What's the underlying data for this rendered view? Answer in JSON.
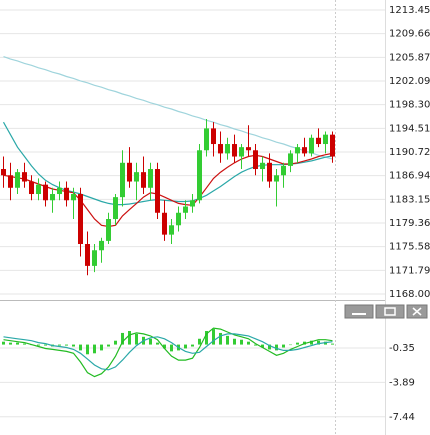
{
  "chart_data": [
    {
      "type": "candlestick",
      "up_color": "#33cc33",
      "down_color": "#cc0000",
      "open": [
        1188,
        1187,
        1185,
        1187.5,
        1186,
        1184,
        1185.5,
        1183,
        1184,
        1185,
        1183,
        1184,
        1176,
        1172.5,
        1175,
        1176.5,
        1180,
        1183.5,
        1189,
        1186,
        1187.5,
        1185,
        1188,
        1181,
        1177.5,
        1179,
        1181,
        1182,
        1183,
        1191,
        1194.5,
        1192,
        1190.5,
        1192,
        1190,
        1191.5,
        1191,
        1188,
        1189,
        1186,
        1187,
        1188.5,
        1190.5,
        1191.5,
        1190.5,
        1193,
        1192,
        1193.5
      ],
      "high": [
        1190,
        1189,
        1188,
        1189,
        1187,
        1186.5,
        1186,
        1185,
        1186,
        1186,
        1185,
        1185,
        1178,
        1176,
        1177,
        1181,
        1184,
        1191,
        1191.5,
        1189,
        1190,
        1189,
        1189,
        1183,
        1180,
        1182,
        1183,
        1184,
        1192,
        1196,
        1195.5,
        1194,
        1193,
        1193.5,
        1192,
        1195,
        1192,
        1190,
        1190.5,
        1188,
        1189,
        1191,
        1192,
        1193,
        1193.5,
        1194.5,
        1194,
        1194
      ],
      "low": [
        1185,
        1183,
        1184,
        1185,
        1183,
        1183,
        1182,
        1181,
        1183,
        1182,
        1180,
        1174,
        1171,
        1171.5,
        1173,
        1176,
        1179,
        1182,
        1185,
        1183,
        1184,
        1183,
        1180,
        1176.5,
        1176,
        1178,
        1180,
        1181,
        1182.5,
        1190,
        1190,
        1189,
        1189.5,
        1189,
        1188,
        1190,
        1187,
        1186,
        1185,
        1182,
        1185,
        1187.5,
        1189,
        1190,
        1190,
        1191.5,
        1190.5,
        1189
      ],
      "close": [
        1187,
        1185,
        1187.5,
        1186,
        1184,
        1185.5,
        1183,
        1184,
        1185,
        1183,
        1184,
        1176,
        1172.5,
        1175,
        1176.5,
        1180,
        1183.5,
        1189,
        1186,
        1187.5,
        1185,
        1188,
        1181,
        1177.5,
        1179,
        1181,
        1182,
        1183,
        1191,
        1194.5,
        1192,
        1190.5,
        1192,
        1190,
        1191.5,
        1191,
        1188,
        1189,
        1186,
        1187,
        1188.5,
        1190.5,
        1191.5,
        1190.5,
        1193,
        1192,
        1193.5,
        1190
      ],
      "series": [
        {
          "color": "#9fd4dc",
          "values": [
            1206,
            1205.6,
            1205.3,
            1204.9,
            1204.6,
            1204.2,
            1203.9,
            1203.5,
            1203.2,
            1202.8,
            1202.5,
            1202.1,
            1201.8,
            1201.4,
            1201.1,
            1200.7,
            1200.4,
            1200,
            1199.7,
            1199.3,
            1199,
            1198.6,
            1198.3,
            1197.9,
            1197.6,
            1197.2,
            1196.9,
            1196.5,
            1196.2,
            1195.8,
            1195.5,
            1195.1,
            1194.8,
            1194.4,
            1194.1,
            1193.7,
            1193.4,
            1193,
            1192.7,
            1192.3,
            1192,
            1191.6,
            1191.3,
            1190.9,
            1190.6,
            1190.2,
            1189.9,
            1189.6
          ]
        },
        {
          "color": "#2aa8a8",
          "values": [
            1195.5,
            1193.5,
            1191.5,
            1190,
            1188.5,
            1187.2,
            1186.2,
            1185.5,
            1185,
            1184.6,
            1184.3,
            1184,
            1183.6,
            1183.2,
            1182.8,
            1182.5,
            1182.3,
            1182.3,
            1182.4,
            1182.6,
            1182.8,
            1183,
            1183.1,
            1183,
            1182.9,
            1182.8,
            1182.8,
            1182.9,
            1183.3,
            1183.8,
            1184.5,
            1185.2,
            1186,
            1186.8,
            1187.5,
            1188,
            1188.4,
            1188.6,
            1188.7,
            1188.7,
            1188.7,
            1188.8,
            1188.9,
            1189.1,
            1189.3,
            1189.6,
            1189.9,
            1190.1
          ]
        },
        {
          "color": "#cc1111",
          "values": [
            1187,
            1186.8,
            1186.6,
            1186.4,
            1186,
            1185.6,
            1185.2,
            1184.8,
            1184.6,
            1184.4,
            1184.2,
            1183,
            1181.5,
            1180,
            1179,
            1178.8,
            1179,
            1180.5,
            1181.5,
            1182.5,
            1183.5,
            1184.2,
            1184,
            1183.5,
            1183,
            1182.5,
            1182.3,
            1182.2,
            1183.5,
            1185,
            1186.5,
            1187.5,
            1188.3,
            1189,
            1189.6,
            1190,
            1190.2,
            1190,
            1189.6,
            1189.2,
            1188.8,
            1188.8,
            1189,
            1189.3,
            1189.6,
            1190,
            1190.3,
            1190.5
          ]
        }
      ],
      "ylim": [
        1167.04,
        1215.05
      ],
      "yticks": [
        1213.45,
        1209.66,
        1205.87,
        1202.09,
        {
          "value": 1198.3,
          "label": "1198.30"
        },
        1194.51,
        1190.72,
        1186.94,
        1183.15,
        1179.36,
        1175.58,
        1171.79,
        {
          "value": 1168,
          "label": "1168.00"
        }
      ],
      "grid": true
    },
    {
      "type": "macd",
      "histogram": {
        "color": "#33cc33",
        "values": [
          0.3,
          0.2,
          0.2,
          0.1,
          0,
          -0.1,
          -0.1,
          -0.2,
          -0.1,
          -0.1,
          -0.2,
          -0.6,
          -1,
          -0.9,
          -0.6,
          -0.2,
          0.4,
          1.2,
          1.4,
          1.1,
          0.8,
          0.6,
          0.2,
          -0.4,
          -0.7,
          -0.6,
          -0.4,
          -0.2,
          0.6,
          1.4,
          1.6,
          1.2,
          0.9,
          0.6,
          0.5,
          0.3,
          -0.1,
          -0.3,
          -0.5,
          -0.6,
          -0.3,
          0,
          0.2,
          0.3,
          0.4,
          0.4,
          0.3,
          0.1
        ]
      },
      "series": [
        {
          "color": "#22bb22",
          "values": [
            0.5,
            0.4,
            0.3,
            0.2,
            0,
            -0.2,
            -0.4,
            -0.5,
            -0.6,
            -0.7,
            -0.9,
            -1.8,
            -2.9,
            -3.3,
            -3,
            -2.3,
            -1.2,
            0.3,
            1,
            1.2,
            1.1,
            0.9,
            0.5,
            -0.4,
            -1.2,
            -1.6,
            -1.6,
            -1.4,
            -0.3,
            1.1,
            1.7,
            1.6,
            1.3,
            1,
            0.8,
            0.6,
            0.1,
            -0.3,
            -0.7,
            -1.1,
            -0.9,
            -0.5,
            -0.2,
            0.1,
            0.3,
            0.5,
            0.5,
            0.4
          ]
        },
        {
          "color": "#2aa8a8",
          "values": [
            0.8,
            0.7,
            0.6,
            0.5,
            0.4,
            0.2,
            0.1,
            -0.1,
            -0.2,
            -0.3,
            -0.5,
            -0.9,
            -1.5,
            -2.1,
            -2.5,
            -2.6,
            -2.3,
            -1.6,
            -0.8,
            -0.1,
            0.4,
            0.7,
            0.8,
            0.6,
            0.2,
            -0.3,
            -0.7,
            -0.9,
            -0.8,
            -0.2,
            0.4,
            0.9,
            1.1,
            1.1,
            1,
            0.9,
            0.6,
            0.3,
            -0.1,
            -0.4,
            -0.6,
            -0.6,
            -0.5,
            -0.3,
            -0.1,
            0.1,
            0.2,
            0.3
          ]
        }
      ],
      "ylim": [
        -9.32,
        2.74
      ],
      "yticks": [
        -0.35,
        -3.89,
        -7.44
      ],
      "grid": true
    }
  ]
}
